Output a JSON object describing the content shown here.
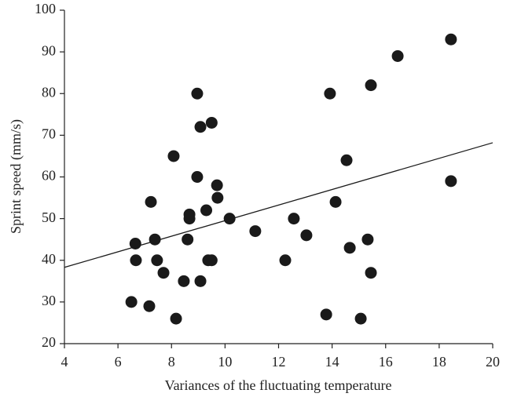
{
  "chart_data": {
    "type": "scatter",
    "xlabel": "Variances of the fluctuating temperature",
    "ylabel": "Sprint speed (mm/s)",
    "color": "#1a1a1a",
    "x": [
      6.5,
      6.65,
      6.67,
      7.17,
      7.23,
      7.38,
      7.46,
      7.7,
      8.08,
      8.17,
      8.46,
      8.6,
      8.67,
      8.67,
      8.96,
      8.96,
      9.08,
      9.08,
      9.3,
      9.37,
      9.5,
      9.5,
      9.7,
      9.72,
      10.17,
      11.13,
      12.25,
      12.57,
      13.04,
      13.78,
      13.92,
      14.13,
      14.54,
      14.66,
      15.07,
      15.33,
      15.45,
      15.45,
      16.45,
      18.44,
      18.44
    ],
    "values": [
      30,
      44,
      40,
      29,
      54,
      45,
      40,
      37,
      65,
      26,
      35,
      45,
      51,
      50,
      80,
      60,
      72,
      35,
      52,
      40,
      40,
      73,
      58,
      55,
      50,
      47,
      40,
      50,
      46,
      27,
      80,
      54,
      64,
      43,
      26,
      45,
      82,
      37,
      89,
      93,
      59
    ],
    "fit_line": {
      "x": [
        4,
        20
      ],
      "values": [
        38.3,
        68.2
      ],
      "color": "#1a1a1a"
    },
    "xlim": [
      4,
      20
    ],
    "xticks": [
      4,
      6,
      8,
      10,
      12,
      14,
      16,
      18,
      20
    ],
    "ylim": [
      20,
      100
    ],
    "yticks": [
      20,
      30,
      40,
      50,
      60,
      70,
      80,
      90,
      100
    ]
  }
}
